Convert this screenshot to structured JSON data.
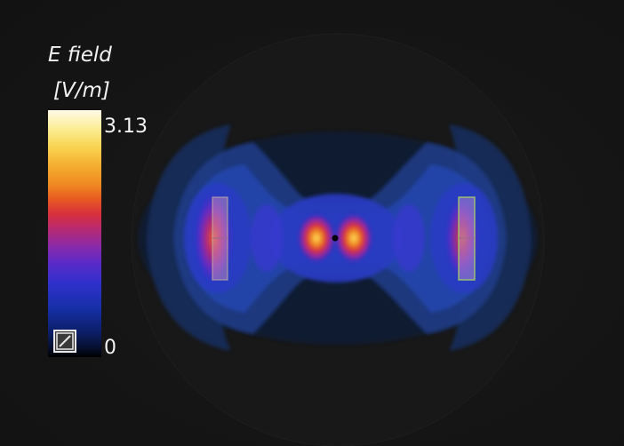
{
  "legend": {
    "title_line1": "E field",
    "title_line2": "[V/m]",
    "max_label": "3.13",
    "min_label": "0"
  },
  "scale_toggle": {
    "icon": "scale-toggle-icon"
  },
  "colors": {
    "background": "#141414",
    "colormap": [
      "#000000",
      "#0c1e66",
      "#3030cc",
      "#8a2aa8",
      "#d8303c",
      "#f08a22",
      "#f8d450",
      "#fffbe8"
    ],
    "probe_box": "#a8d060"
  }
}
